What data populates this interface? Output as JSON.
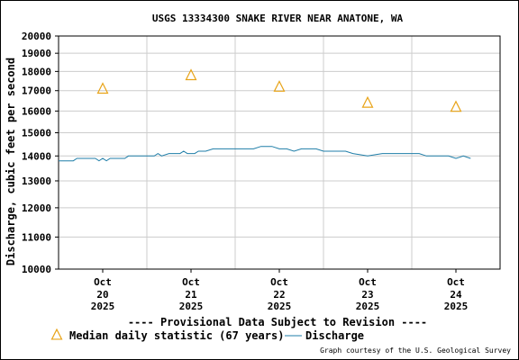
{
  "chart_data": {
    "type": "line",
    "title": "USGS 13334300 SNAKE RIVER NEAR ANATONE, WA",
    "ylabel": "Discharge, cubic feet per second",
    "xlabel": "",
    "y_scale": "log",
    "ylim": [
      10000,
      20000
    ],
    "y_ticks": [
      10000,
      11000,
      12000,
      13000,
      14000,
      15000,
      16000,
      17000,
      18000,
      19000,
      20000
    ],
    "y_tick_labels": [
      "10000",
      "11000",
      "12000",
      "13000",
      "14000",
      "15000",
      "16000",
      "17000",
      "18000",
      "19000",
      "20000"
    ],
    "xlim": [
      "2025-10-20 00:00",
      "2025-10-25 00:00"
    ],
    "x_ticks": [
      {
        "x": "2025-10-20 12:00",
        "line1": "Oct",
        "line2": "20",
        "line3": "2025"
      },
      {
        "x": "2025-10-21 12:00",
        "line1": "Oct",
        "line2": "21",
        "line3": "2025"
      },
      {
        "x": "2025-10-22 12:00",
        "line1": "Oct",
        "line2": "22",
        "line3": "2025"
      },
      {
        "x": "2025-10-23 12:00",
        "line1": "Oct",
        "line2": "23",
        "line3": "2025"
      },
      {
        "x": "2025-10-24 12:00",
        "line1": "Oct",
        "line2": "24",
        "line3": "2025"
      }
    ],
    "grid": true,
    "series": [
      {
        "name": "Discharge",
        "kind": "line",
        "color": "#1f7ea8",
        "points": [
          [
            "2025-10-20 00:00",
            13800
          ],
          [
            "2025-10-20 04:00",
            13800
          ],
          [
            "2025-10-20 05:00",
            13900
          ],
          [
            "2025-10-20 10:00",
            13900
          ],
          [
            "2025-10-20 11:00",
            13800
          ],
          [
            "2025-10-20 12:00",
            13900
          ],
          [
            "2025-10-20 13:00",
            13800
          ],
          [
            "2025-10-20 14:00",
            13900
          ],
          [
            "2025-10-20 18:00",
            13900
          ],
          [
            "2025-10-20 19:00",
            14000
          ],
          [
            "2025-10-21 02:00",
            14000
          ],
          [
            "2025-10-21 03:00",
            14100
          ],
          [
            "2025-10-21 04:00",
            14000
          ],
          [
            "2025-10-21 06:00",
            14100
          ],
          [
            "2025-10-21 09:00",
            14100
          ],
          [
            "2025-10-21 10:00",
            14200
          ],
          [
            "2025-10-21 11:00",
            14100
          ],
          [
            "2025-10-21 13:00",
            14100
          ],
          [
            "2025-10-21 14:00",
            14200
          ],
          [
            "2025-10-21 16:00",
            14200
          ],
          [
            "2025-10-21 18:00",
            14300
          ],
          [
            "2025-10-22 05:00",
            14300
          ],
          [
            "2025-10-22 07:00",
            14400
          ],
          [
            "2025-10-22 10:00",
            14400
          ],
          [
            "2025-10-22 12:00",
            14300
          ],
          [
            "2025-10-22 14:00",
            14300
          ],
          [
            "2025-10-22 16:00",
            14200
          ],
          [
            "2025-10-22 18:00",
            14300
          ],
          [
            "2025-10-22 22:00",
            14300
          ],
          [
            "2025-10-23 00:00",
            14200
          ],
          [
            "2025-10-23 06:00",
            14200
          ],
          [
            "2025-10-23 08:00",
            14100
          ],
          [
            "2025-10-23 12:00",
            14000
          ],
          [
            "2025-10-23 16:00",
            14100
          ],
          [
            "2025-10-23 22:00",
            14100
          ],
          [
            "2025-10-24 02:00",
            14100
          ],
          [
            "2025-10-24 04:00",
            14000
          ],
          [
            "2025-10-24 10:00",
            14000
          ],
          [
            "2025-10-24 12:00",
            13900
          ],
          [
            "2025-10-24 14:00",
            14000
          ],
          [
            "2025-10-24 16:00",
            13900
          ]
        ]
      },
      {
        "name": "Median daily statistic (67 years)",
        "kind": "marker",
        "marker": "triangle",
        "color": "#e8a317",
        "points": [
          [
            "2025-10-20 12:00",
            17100
          ],
          [
            "2025-10-21 12:00",
            17800
          ],
          [
            "2025-10-22 12:00",
            17200
          ],
          [
            "2025-10-23 12:00",
            16400
          ],
          [
            "2025-10-24 12:00",
            16200
          ]
        ]
      }
    ],
    "provisional_note": "---- Provisional Data Subject to Revision ----",
    "provisional_color": "#dd0000",
    "legend_placement": "bottom",
    "credit": "Graph courtesy of the U.S. Geological Survey"
  }
}
